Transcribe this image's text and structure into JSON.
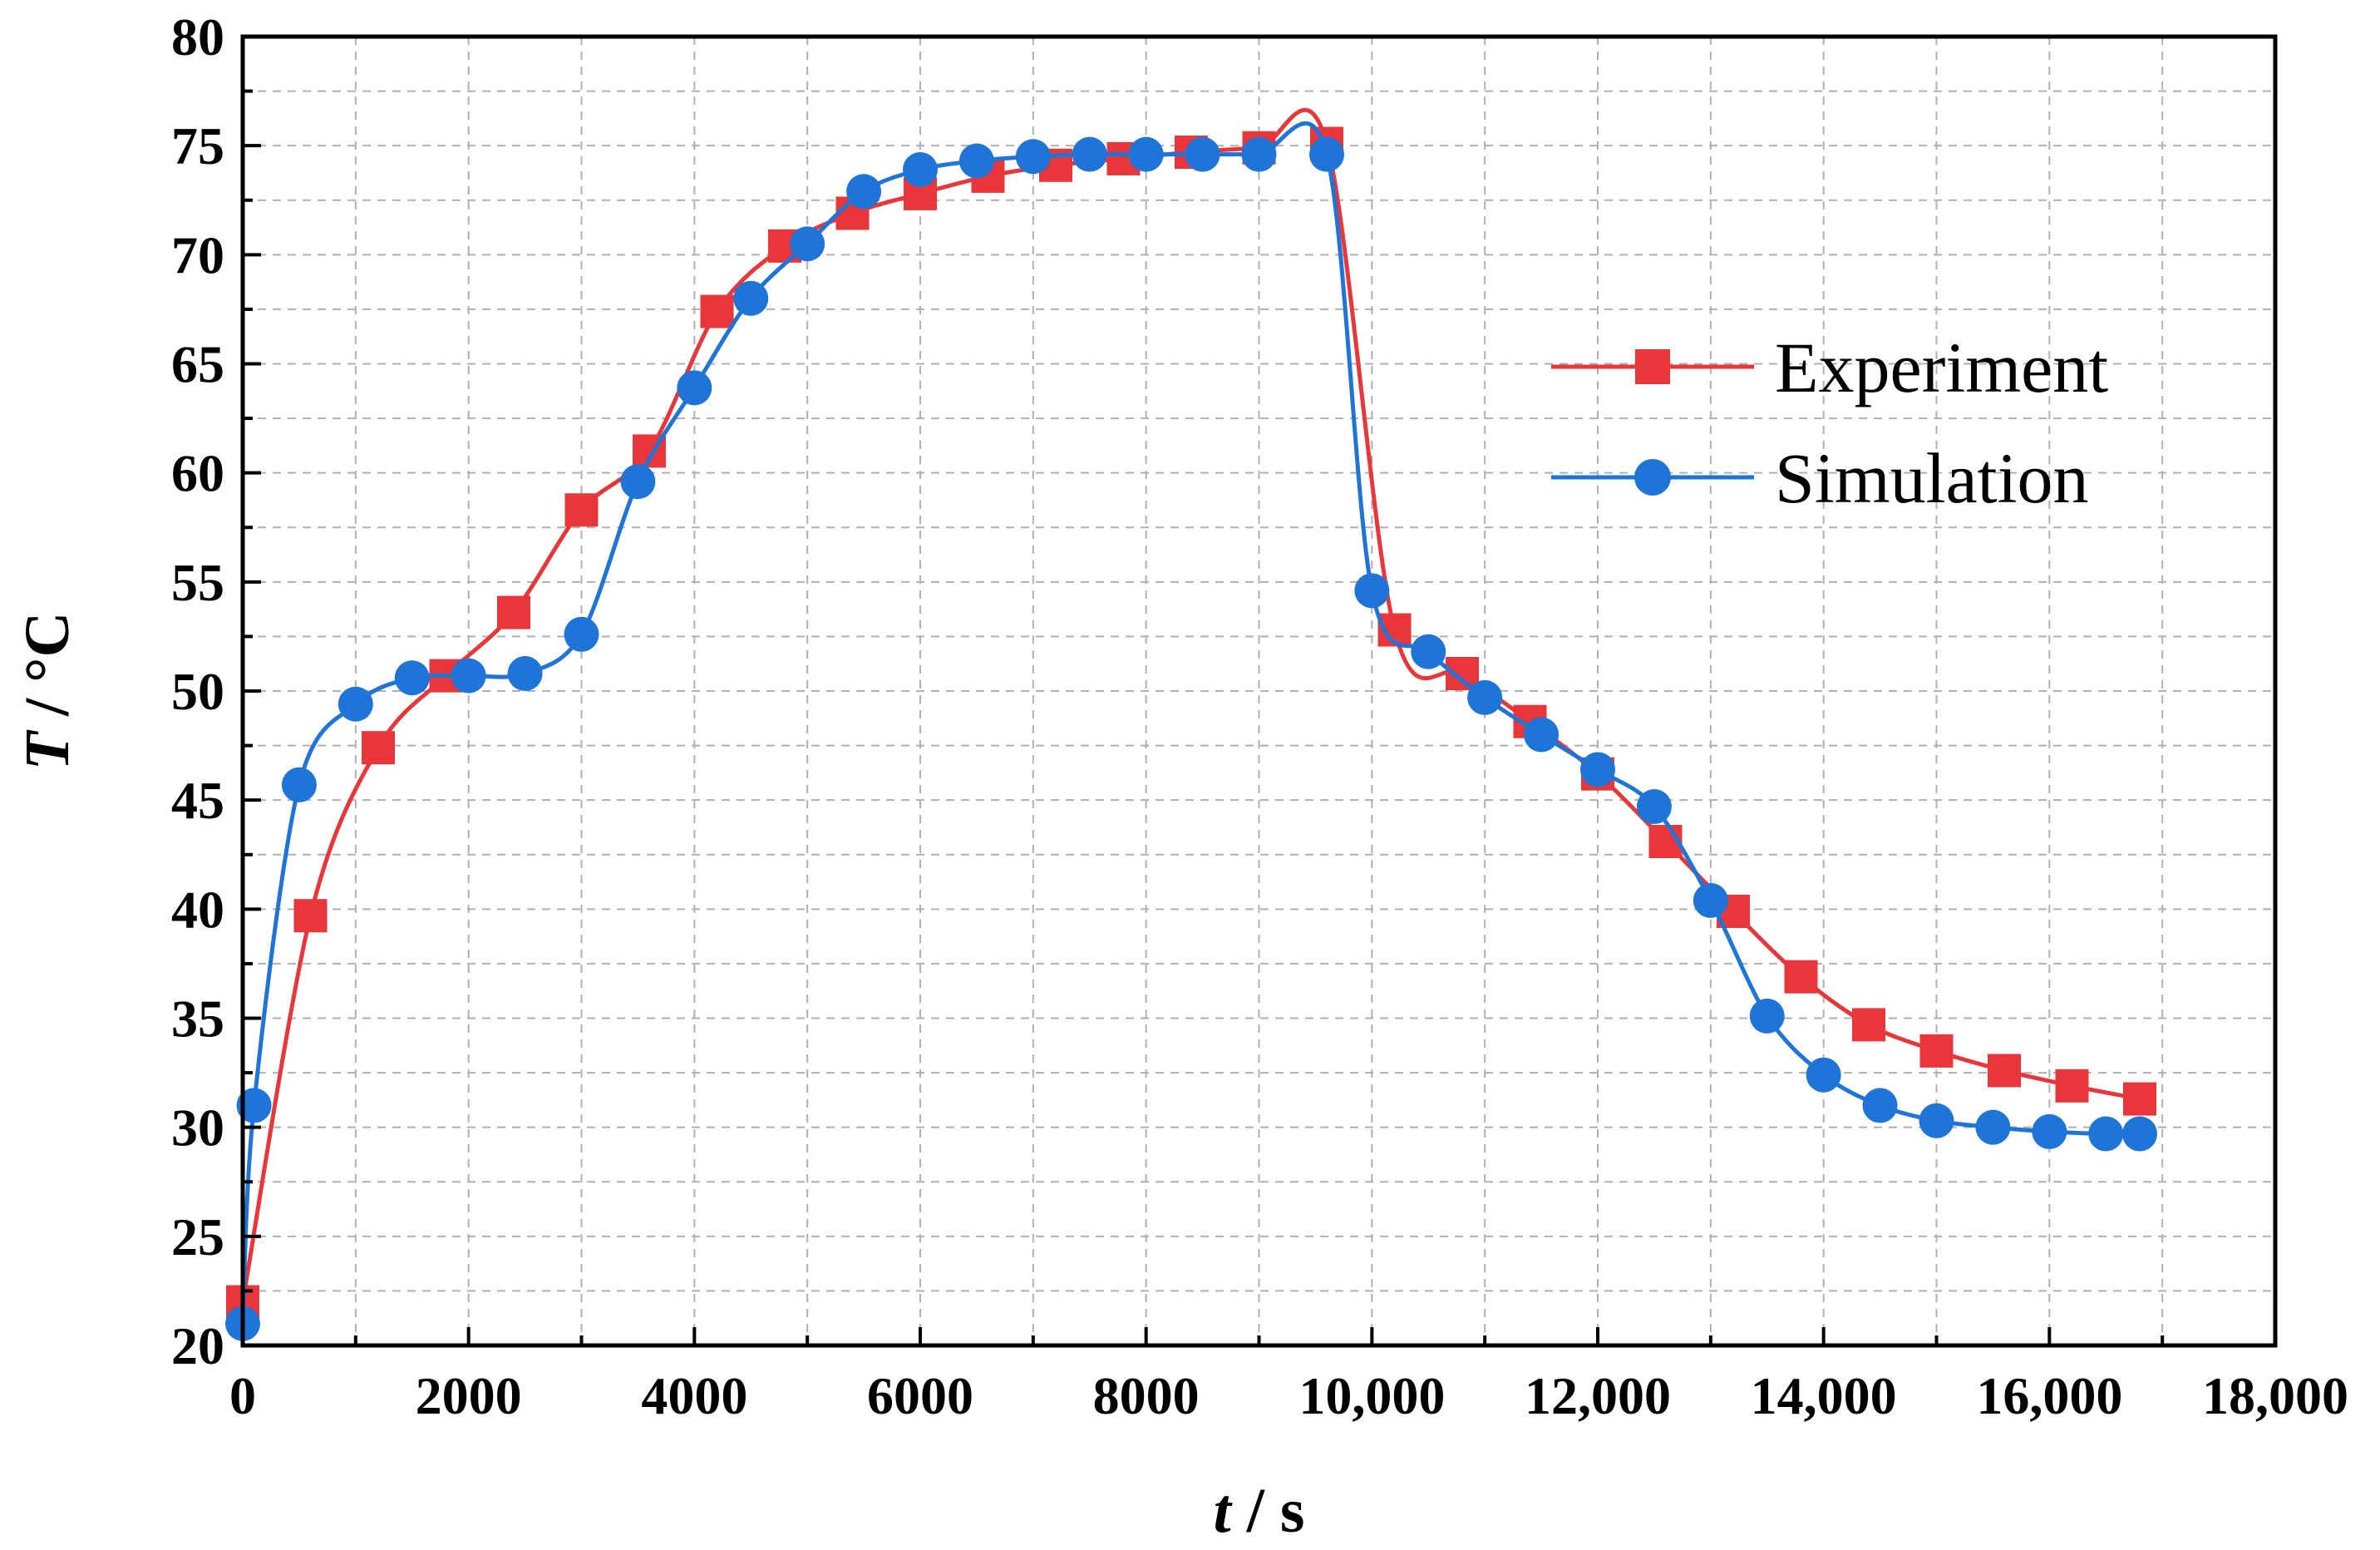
{
  "chart_data": {
    "type": "line",
    "title": "",
    "xlabel": "t / s",
    "ylabel": "T / °C",
    "xlabel_var": "t",
    "xlabel_unit": " / s",
    "ylabel_var": "T",
    "ylabel_unit": " / °C",
    "xlim": [
      0,
      18000
    ],
    "ylim": [
      20,
      80
    ],
    "x_ticks": [
      0,
      2000,
      4000,
      6000,
      8000,
      10000,
      12000,
      14000,
      16000,
      18000
    ],
    "x_tick_labels": [
      "0",
      "2000",
      "4000",
      "6000",
      "8000",
      "10,000",
      "12,000",
      "14,000",
      "16,000",
      "18,000"
    ],
    "y_ticks": [
      20,
      25,
      30,
      35,
      40,
      45,
      50,
      55,
      60,
      65,
      70,
      75,
      80
    ],
    "y_tick_labels": [
      "20",
      "25",
      "30",
      "35",
      "40",
      "45",
      "50",
      "55",
      "60",
      "65",
      "70",
      "75",
      "80"
    ],
    "grid": true,
    "legend_position": "upper-right",
    "series": [
      {
        "name": "Experiment",
        "color": "#e8363a",
        "marker": "square",
        "x": [
          0,
          600,
          1200,
          1800,
          2400,
          3000,
          3600,
          4200,
          4800,
          5400,
          6000,
          6600,
          7200,
          7800,
          8400,
          9000,
          9600,
          10200,
          10800,
          11400,
          12000,
          12600,
          13200,
          13800,
          14400,
          15000,
          15600,
          16200,
          16800
        ],
        "y": [
          22.0,
          39.7,
          47.4,
          50.7,
          53.6,
          58.3,
          61.0,
          67.4,
          70.4,
          71.9,
          72.8,
          73.6,
          74.1,
          74.4,
          74.7,
          74.9,
          75.1,
          52.8,
          50.8,
          48.6,
          46.2,
          43.1,
          39.9,
          36.9,
          34.7,
          33.5,
          32.6,
          31.9,
          31.3
        ]
      },
      {
        "name": "Simulation",
        "color": "#1f74d8",
        "marker": "circle",
        "x": [
          0,
          100,
          500,
          1000,
          1500,
          2000,
          2500,
          3000,
          3500,
          4000,
          4500,
          5000,
          5500,
          6000,
          6500,
          7000,
          7500,
          8000,
          8500,
          9000,
          9600,
          10000,
          10500,
          11000,
          11500,
          12000,
          12500,
          13000,
          13500,
          14000,
          14500,
          15000,
          15500,
          16000,
          16500,
          16800
        ],
        "y": [
          21.0,
          31.0,
          45.7,
          49.4,
          50.6,
          50.7,
          50.8,
          52.6,
          59.6,
          63.9,
          68.0,
          70.5,
          72.9,
          73.9,
          74.3,
          74.5,
          74.6,
          74.6,
          74.6,
          74.6,
          74.6,
          54.6,
          51.8,
          49.7,
          48.0,
          46.4,
          44.7,
          40.4,
          35.1,
          32.4,
          31.0,
          30.3,
          30.0,
          29.8,
          29.7,
          29.7
        ]
      }
    ]
  }
}
